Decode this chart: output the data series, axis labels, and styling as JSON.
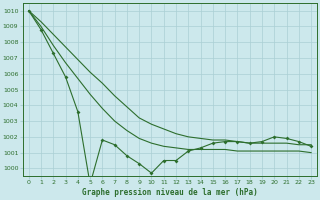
{
  "title": "Graphe pression niveau de la mer (hPa)",
  "background_color": "#cce8ec",
  "grid_color": "#aacfd4",
  "line_color": "#2d6e2d",
  "xlim": [
    -0.5,
    23.5
  ],
  "ylim": [
    999.5,
    1010.5
  ],
  "yticks": [
    1000,
    1001,
    1002,
    1003,
    1004,
    1005,
    1006,
    1007,
    1008,
    1009,
    1010
  ],
  "xticks": [
    0,
    1,
    2,
    3,
    4,
    5,
    6,
    7,
    8,
    9,
    10,
    11,
    12,
    13,
    14,
    15,
    16,
    17,
    18,
    19,
    20,
    21,
    22,
    23
  ],
  "line_smooth1": {
    "x": [
      0,
      1,
      2,
      3,
      4,
      5,
      6,
      7,
      8,
      9,
      10,
      11,
      12,
      13,
      14,
      15,
      16,
      17,
      18,
      19,
      20,
      21,
      22,
      23
    ],
    "y": [
      1010.0,
      1009.3,
      1008.5,
      1007.7,
      1006.9,
      1006.1,
      1005.4,
      1004.6,
      1003.9,
      1003.2,
      1002.8,
      1002.5,
      1002.2,
      1002.0,
      1001.9,
      1001.8,
      1001.8,
      1001.7,
      1001.6,
      1001.6,
      1001.6,
      1001.6,
      1001.5,
      1001.5
    ]
  },
  "line_smooth2": {
    "x": [
      0,
      1,
      2,
      3,
      4,
      5,
      6,
      7,
      8,
      9,
      10,
      11,
      12,
      13,
      14,
      15,
      16,
      17,
      18,
      19,
      20,
      21,
      22,
      23
    ],
    "y": [
      1010.0,
      1009.0,
      1007.8,
      1006.7,
      1005.7,
      1004.7,
      1003.8,
      1003.0,
      1002.4,
      1001.9,
      1001.6,
      1001.4,
      1001.3,
      1001.2,
      1001.2,
      1001.2,
      1001.2,
      1001.1,
      1001.1,
      1001.1,
      1001.1,
      1001.1,
      1001.1,
      1001.0
    ]
  },
  "line_zigzag": {
    "x": [
      0,
      1,
      2,
      3,
      4,
      5,
      6,
      7,
      8,
      9,
      10,
      11,
      12,
      13,
      14,
      15,
      16,
      17,
      18,
      19,
      20,
      21,
      22,
      23
    ],
    "y": [
      1010.0,
      1008.8,
      1007.3,
      1005.8,
      1003.6,
      999.0,
      1001.8,
      1001.5,
      1000.8,
      1000.3,
      999.7,
      1000.5,
      1000.5,
      1001.1,
      1001.3,
      1001.6,
      1001.7,
      1001.7,
      1001.6,
      1001.7,
      1002.0,
      1001.9,
      1001.7,
      1001.4
    ]
  }
}
